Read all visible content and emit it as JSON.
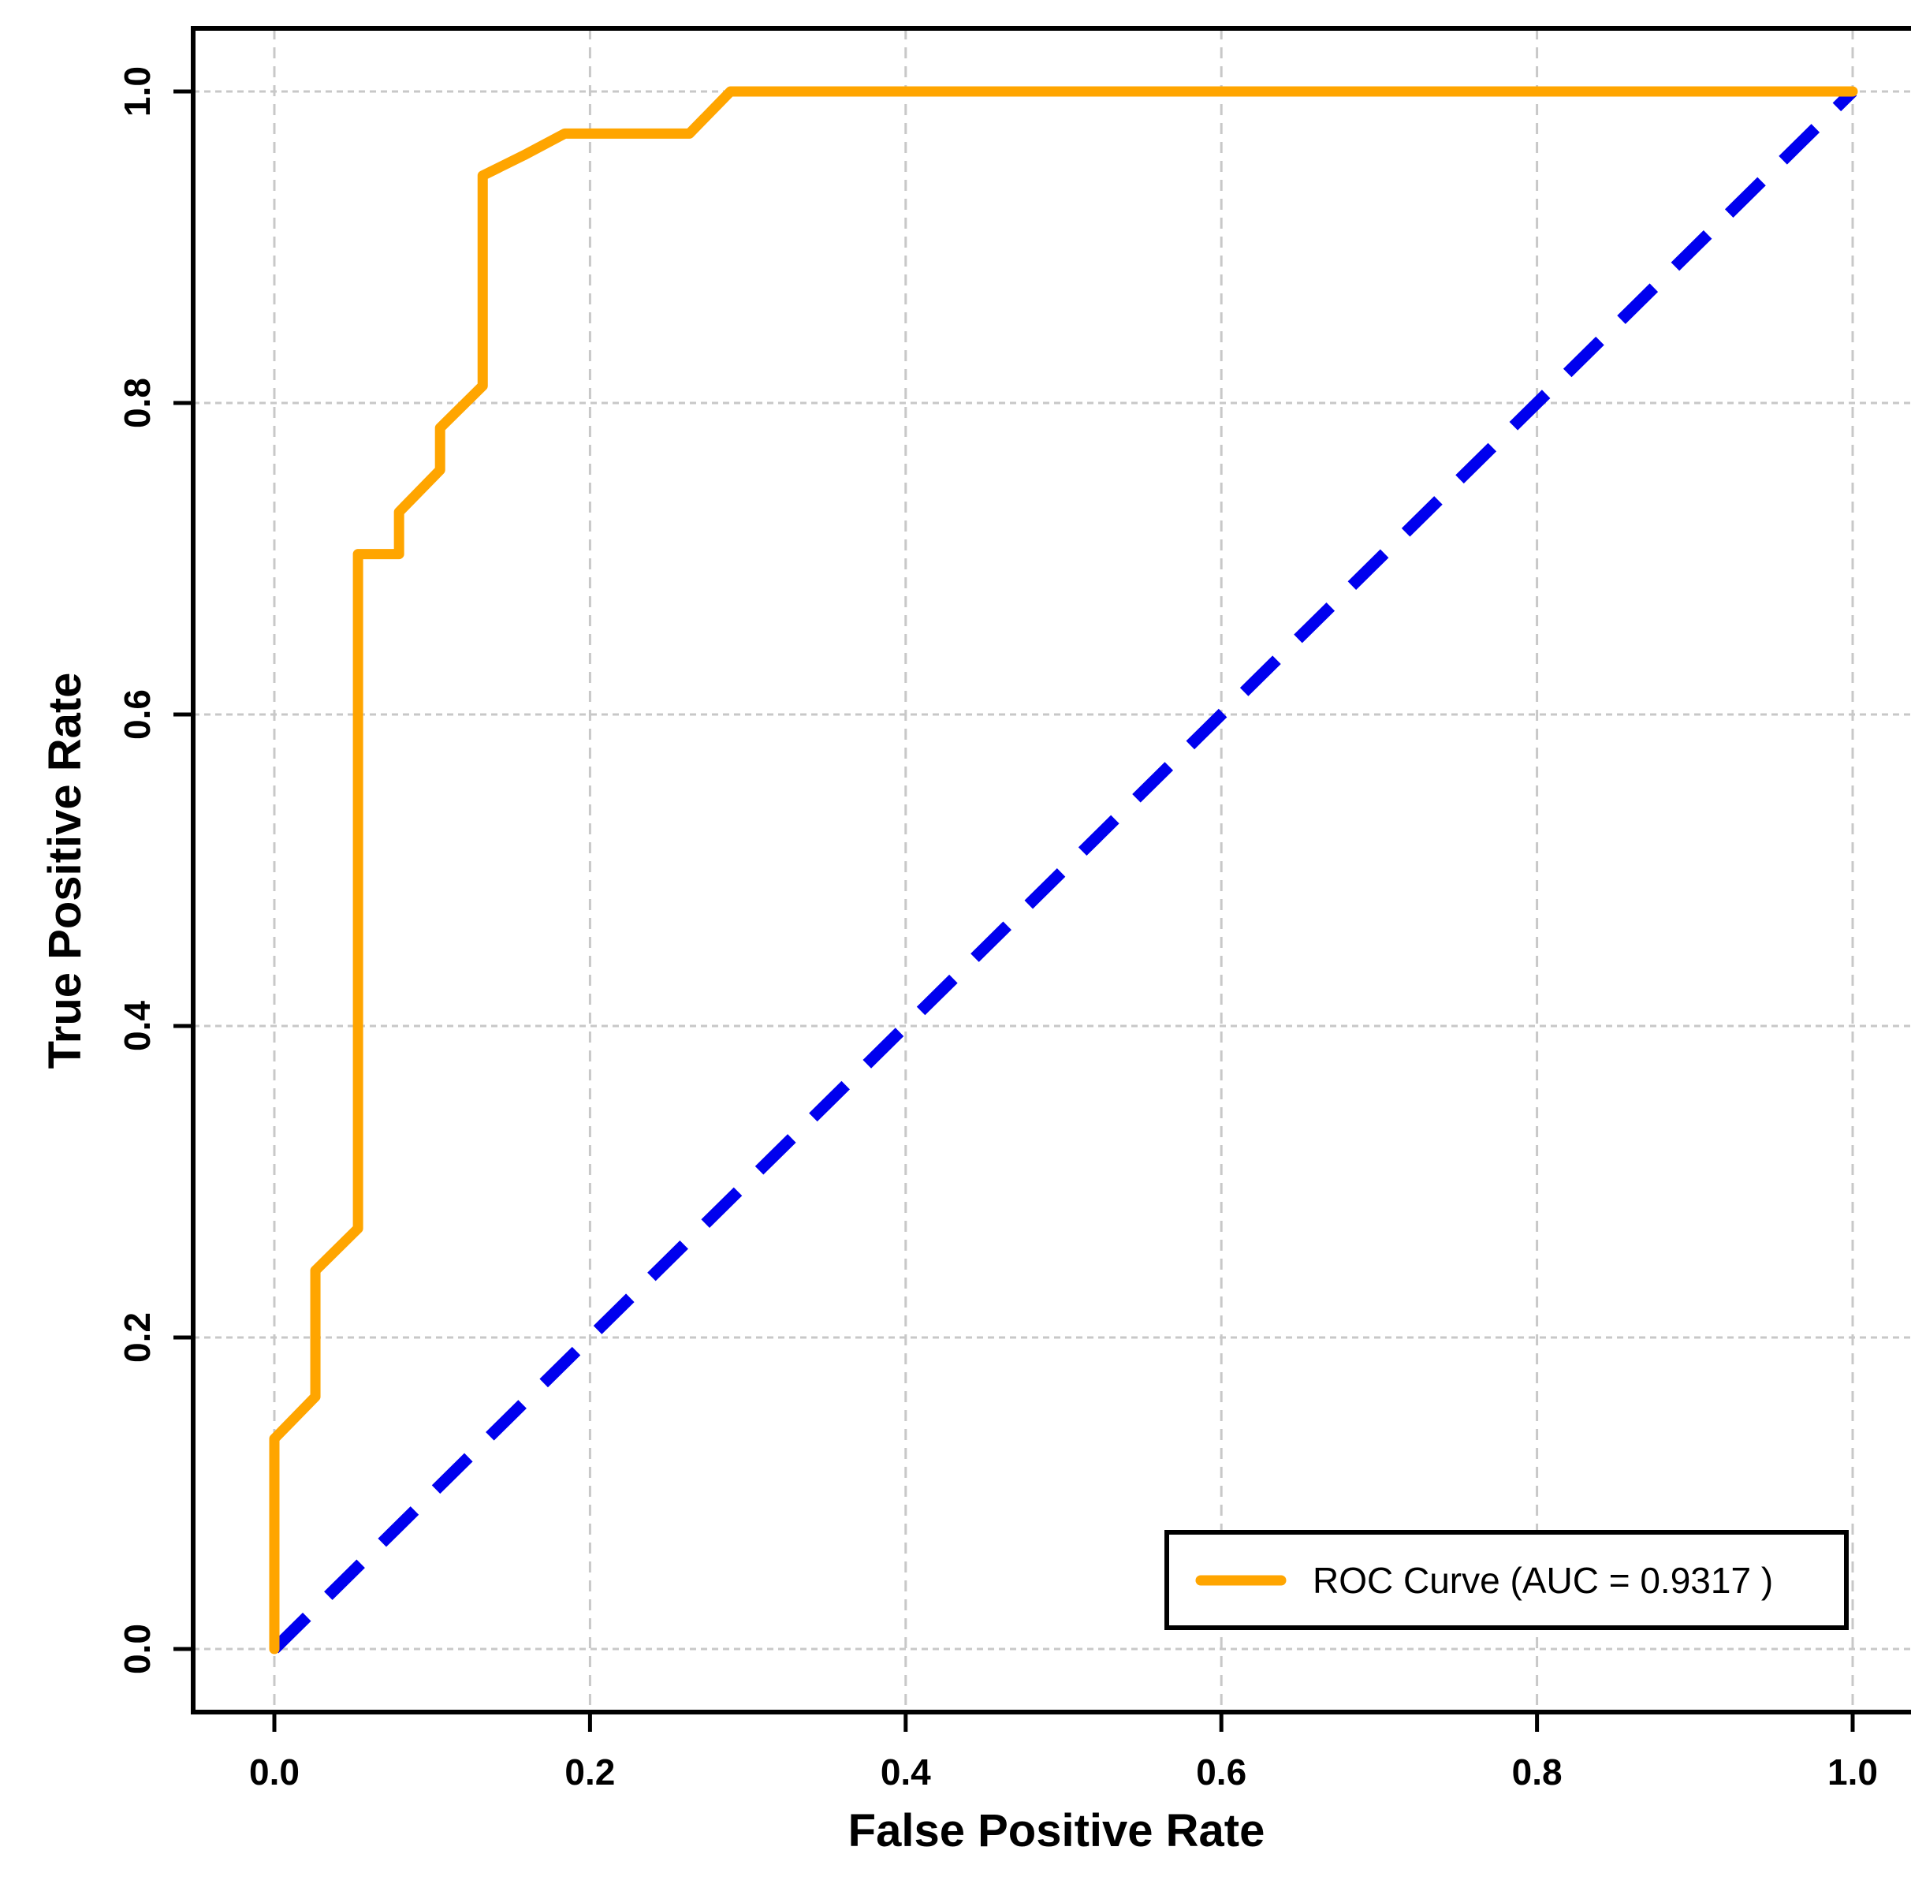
{
  "chart_data": {
    "type": "line",
    "title": "",
    "xlabel": "False Positive Rate",
    "ylabel": "True Positive Rate",
    "xlim": [
      0,
      1
    ],
    "ylim": [
      0,
      1
    ],
    "grid": true,
    "grid_color": "#C8C8C8",
    "axis_color": "#000000",
    "background_color": "#FFFFFF",
    "xticks": [
      0.0,
      0.2,
      0.4,
      0.6,
      0.8,
      1.0
    ],
    "xtick_labels": [
      "0.0",
      "0.2",
      "0.4",
      "0.6",
      "0.8",
      "1.0"
    ],
    "yticks": [
      0.0,
      0.2,
      0.4,
      0.6,
      0.8,
      1.0
    ],
    "ytick_labels": [
      "0.0",
      "0.2",
      "0.4",
      "0.6",
      "0.8",
      "1.0"
    ],
    "series": [
      {
        "name": "chance-diagonal",
        "color": "#0000EE",
        "line_style": "dashed",
        "points": [
          [
            0,
            0
          ],
          [
            1,
            1
          ]
        ]
      },
      {
        "name": "roc-curve",
        "color": "#FFA500",
        "line_style": "solid",
        "points": [
          [
            0.0,
            0.0
          ],
          [
            0.0,
            0.135
          ],
          [
            0.026,
            0.162
          ],
          [
            0.026,
            0.243
          ],
          [
            0.053,
            0.27
          ],
          [
            0.053,
            0.703
          ],
          [
            0.079,
            0.703
          ],
          [
            0.079,
            0.73
          ],
          [
            0.105,
            0.757
          ],
          [
            0.105,
            0.784
          ],
          [
            0.132,
            0.811
          ],
          [
            0.132,
            0.946
          ],
          [
            0.158,
            0.959
          ],
          [
            0.184,
            0.973
          ],
          [
            0.263,
            0.973
          ],
          [
            0.289,
            1.0
          ],
          [
            1.0,
            1.0
          ]
        ]
      }
    ],
    "legend": {
      "position": "bottom-right",
      "auc": 0.9317,
      "entries": [
        {
          "label": "ROC Curve (AUC = 0.9317 )",
          "color": "#FFA500"
        }
      ]
    }
  }
}
